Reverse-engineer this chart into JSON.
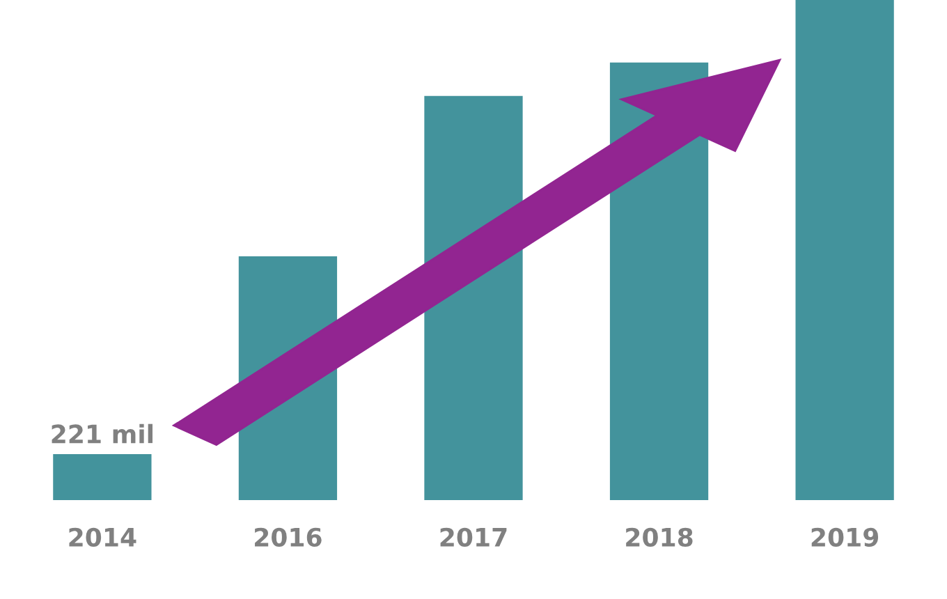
{
  "chart_data": {
    "type": "bar",
    "categories": [
      "2014",
      "2016",
      "2017",
      "2018",
      "2019"
    ],
    "values": [
      221,
      1170,
      1940,
      2100,
      2400
    ],
    "value_labels": [
      "221 mil",
      null,
      null,
      null,
      null
    ],
    "color": "#43939c",
    "grid": false,
    "legend": false
  }
}
